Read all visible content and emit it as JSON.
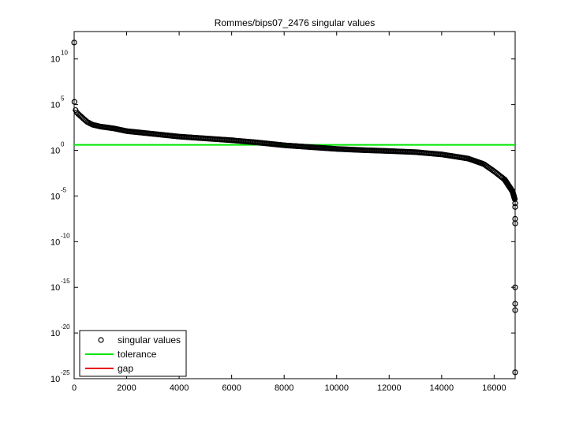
{
  "chart_data": {
    "type": "scatter",
    "title": "Rommes/bips07_2476 singular values",
    "xlabel": "",
    "ylabel": "",
    "yscale": "log",
    "xlim": [
      0,
      16800
    ],
    "ylim_exponent": [
      -25,
      13
    ],
    "xticks": [
      0,
      2000,
      4000,
      6000,
      8000,
      10000,
      12000,
      14000,
      16000
    ],
    "yticks": [
      {
        "base": "10",
        "exp": "10",
        "value": 10
      },
      {
        "base": "10",
        "exp": "5",
        "value": 5
      },
      {
        "base": "10",
        "exp": "0",
        "value": 0
      },
      {
        "base": "10",
        "exp": "-5",
        "value": -5
      },
      {
        "base": "10",
        "exp": "-10",
        "value": -10
      },
      {
        "base": "10",
        "exp": "-15",
        "value": -15
      },
      {
        "base": "10",
        "exp": "-20",
        "value": -20
      },
      {
        "base": "10",
        "exp": "-25",
        "value": -25
      }
    ],
    "series": [
      {
        "name": "singular values",
        "color": "#000000",
        "marker": "circle",
        "curve_log10": [
          [
            0,
            11.8
          ],
          [
            10,
            5.3
          ],
          [
            30,
            4.6
          ],
          [
            80,
            4.2
          ],
          [
            150,
            4.0
          ],
          [
            300,
            3.6
          ],
          [
            500,
            3.1
          ],
          [
            700,
            2.8
          ],
          [
            1000,
            2.6
          ],
          [
            1500,
            2.4
          ],
          [
            2000,
            2.1
          ],
          [
            3000,
            1.8
          ],
          [
            4000,
            1.5
          ],
          [
            5000,
            1.3
          ],
          [
            6000,
            1.1
          ],
          [
            7000,
            0.85
          ],
          [
            8000,
            0.55
          ],
          [
            9000,
            0.35
          ],
          [
            10000,
            0.15
          ],
          [
            11000,
            0.02
          ],
          [
            12000,
            -0.08
          ],
          [
            13000,
            -0.2
          ],
          [
            14000,
            -0.45
          ],
          [
            15000,
            -0.9
          ],
          [
            15600,
            -1.5
          ],
          [
            16000,
            -2.3
          ],
          [
            16400,
            -3.2
          ],
          [
            16700,
            -4.5
          ],
          [
            16790,
            -5.4
          ]
        ],
        "outliers_log10": [
          [
            16800,
            -5.8
          ],
          [
            16800,
            -6.2
          ],
          [
            16800,
            -7.5
          ],
          [
            16800,
            -8.0
          ],
          [
            16800,
            -15.0
          ],
          [
            16800,
            -16.8
          ],
          [
            16800,
            -17.5
          ],
          [
            16800,
            -24.3
          ]
        ]
      },
      {
        "name": "tolerance",
        "color": "#00e600",
        "type": "hline",
        "value_log10": 0.6
      },
      {
        "name": "gap",
        "color": "#e60000",
        "type": "hline",
        "value_log10": null
      }
    ],
    "legend": {
      "placement": "bottom-left",
      "entries": [
        "singular values",
        "tolerance",
        "gap"
      ]
    }
  }
}
